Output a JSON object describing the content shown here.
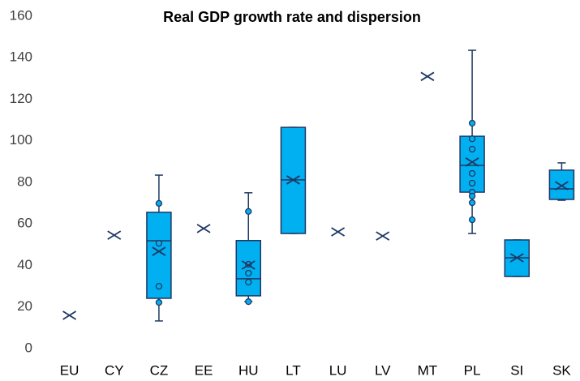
{
  "chart_data": {
    "type": "box",
    "title": "Real GDP growth rate and dispersion",
    "categories": [
      "EU",
      "CY",
      "CZ",
      "EE",
      "HU",
      "LT",
      "LU",
      "LV",
      "MT",
      "PL",
      "SI",
      "SK"
    ],
    "min": [
      null,
      null,
      13.3,
      null,
      22.6,
      55.4,
      null,
      null,
      null,
      55.4,
      34.7,
      71.4
    ],
    "q1": [
      null,
      null,
      24.2,
      null,
      25.4,
      55.4,
      null,
      null,
      null,
      75.3,
      34.7,
      71.8
    ],
    "median": [
      null,
      null,
      51.9,
      null,
      33.6,
      81.2,
      null,
      null,
      null,
      88.2,
      43.7,
      76.9
    ],
    "q3": [
      null,
      null,
      65.6,
      null,
      52,
      106.5,
      null,
      null,
      null,
      102.2,
      52.3,
      85.9
    ],
    "max": [
      null,
      null,
      83.5,
      null,
      75,
      106.5,
      null,
      null,
      null,
      143.6,
      52.3,
      89.4
    ],
    "mean": [
      16,
      54.6,
      46.8,
      57.8,
      40.2,
      81.2,
      56.2,
      54.2,
      131,
      89.8,
      43.7,
      78.4
    ],
    "points": [
      [],
      [],
      [
        69.9,
        50.7,
        30,
        22.2
      ],
      [],
      [
        66,
        40.6,
        36.3,
        32,
        22.6
      ],
      [],
      [],
      [],
      [],
      [
        108.5,
        101,
        96,
        84.3,
        79.6,
        75.3,
        73.4,
        70.2,
        62
      ],
      [],
      []
    ],
    "color": "#00b0f0",
    "edge_color": "#1f3864",
    "ylim": [
      0,
      160
    ],
    "yticks": [
      0,
      20,
      40,
      60,
      80,
      100,
      120,
      140,
      160
    ],
    "grid": false
  }
}
